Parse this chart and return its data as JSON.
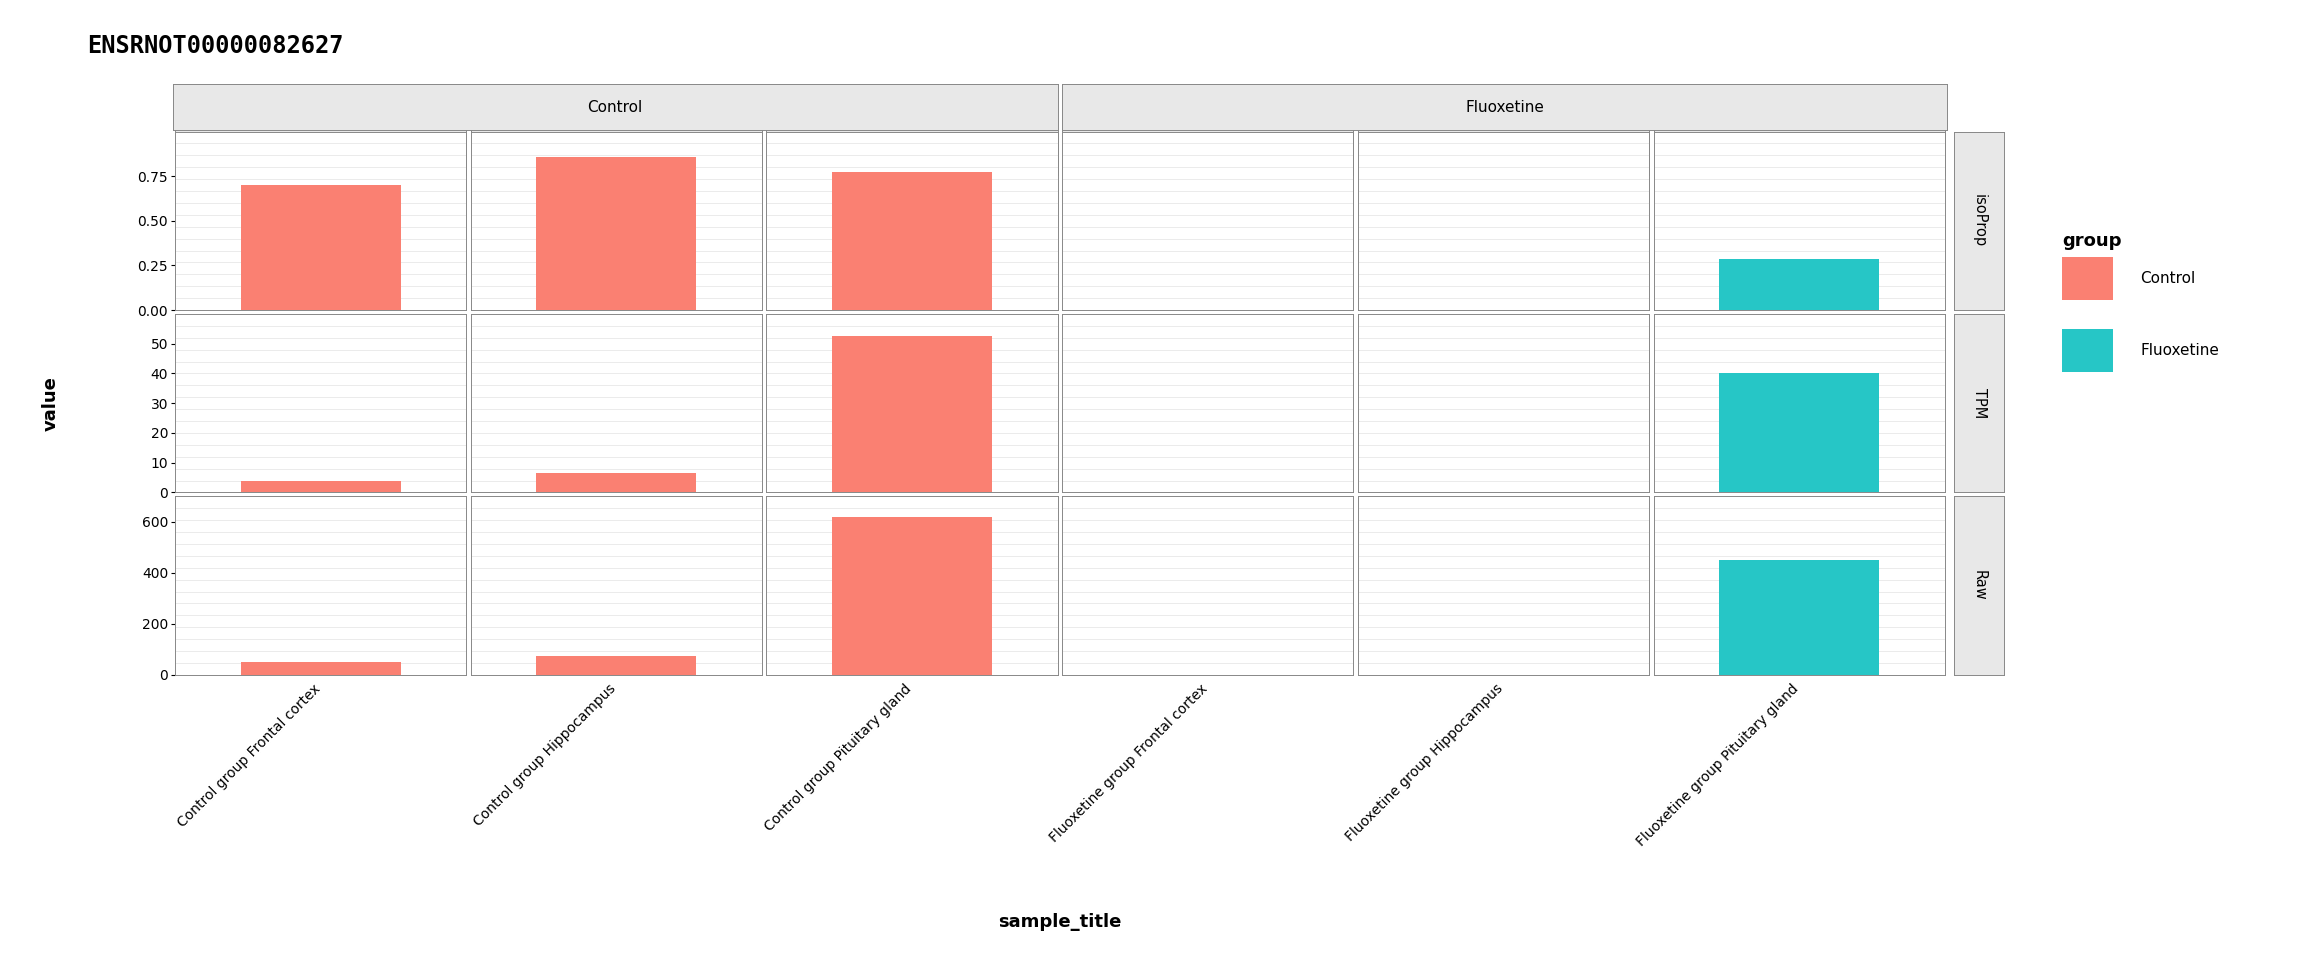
{
  "title": "ENSRNOT00000082627",
  "samples": [
    "Control group Frontal cortex",
    "Control group Hippocampus",
    "Control group Pituitary gland",
    "Fluoxetine group Frontal cortex",
    "Fluoxetine group Hippocampus",
    "Fluoxetine group Pituitary gland"
  ],
  "tissues": [
    "Frontal cortex",
    "Hippocampus",
    "Pituitary gland",
    "Frontal cortex",
    "Hippocampus",
    "Pituitary gland"
  ],
  "condition1": "Control",
  "condition2": "Fluoxetine",
  "row_labels": [
    "isoProp",
    "TPM",
    "Raw"
  ],
  "isoprop_values": [
    0.7,
    0.855,
    0.775,
    0.0,
    0.0,
    0.285
  ],
  "tpm_values": [
    4.0,
    6.5,
    52.5,
    0.0,
    0.0,
    40.0
  ],
  "raw_values": [
    50.0,
    75.0,
    620.0,
    0.0,
    0.0,
    450.0
  ],
  "color_control": "#FA8072",
  "color_fluoxetine": "#26C6C6",
  "bar_width": 0.55,
  "isoprop_ylim": [
    0,
    1.0
  ],
  "isoprop_yticks": [
    0.0,
    0.25,
    0.5,
    0.75
  ],
  "tpm_ylim": [
    0,
    60
  ],
  "tpm_yticks": [
    0,
    10,
    20,
    30,
    40,
    50
  ],
  "raw_ylim": [
    0,
    700
  ],
  "raw_yticks": [
    0,
    200,
    400,
    600
  ],
  "xlabel": "sample_title",
  "ylabel": "value",
  "background_color": "#ffffff",
  "panel_bg": "#ffffff",
  "strip_bg": "#e8e8e8",
  "grid_color": "#e8e8e8",
  "title_fontsize": 17,
  "axis_label_fontsize": 12,
  "tick_fontsize": 10,
  "strip_fontsize": 11,
  "legend_title": "group",
  "legend_labels": [
    "Control",
    "Fluoxetine"
  ],
  "n_grid_lines": 15
}
